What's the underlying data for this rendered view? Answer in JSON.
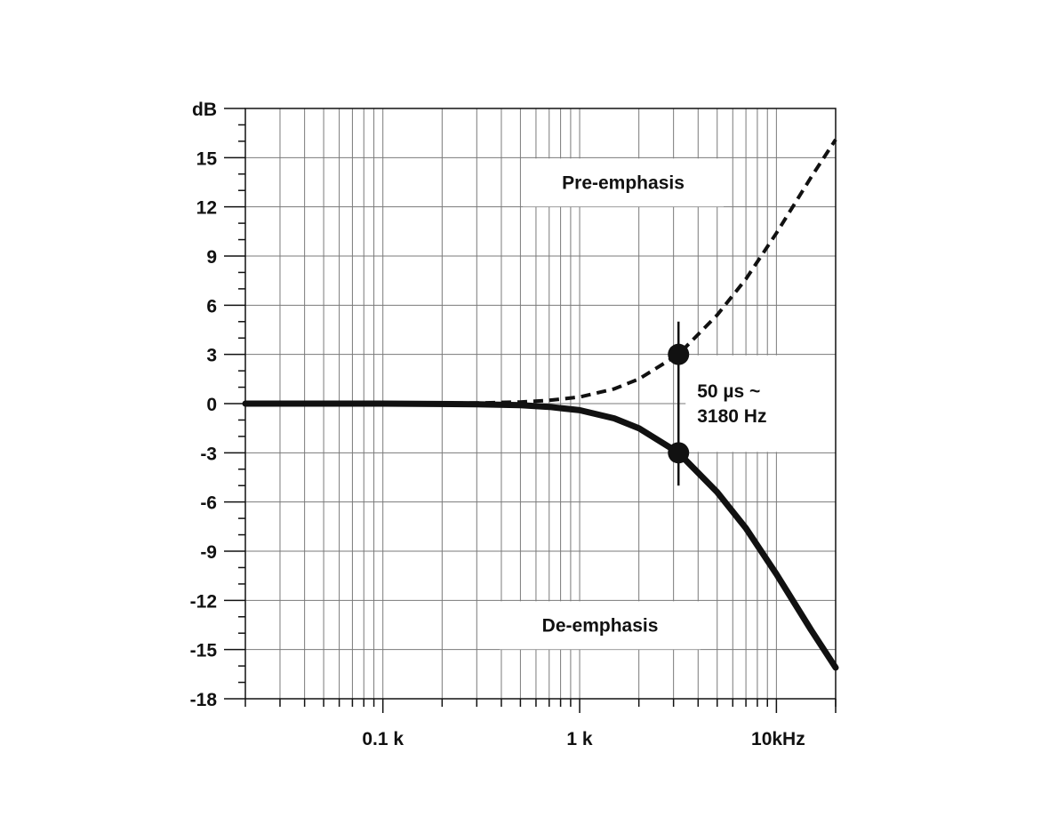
{
  "chart_data": {
    "type": "line",
    "title": "",
    "xlabel": "",
    "ylabel": "dB",
    "x_scale": "log",
    "xlim": [
      20,
      20000
    ],
    "ylim": [
      -18,
      18
    ],
    "grid": true,
    "y_ticks": [
      15,
      12,
      9,
      6,
      3,
      0,
      -3,
      -6,
      -9,
      -12,
      -15,
      -18
    ],
    "y_tick_labels": [
      "15",
      "12",
      "9",
      "6",
      "3",
      "0",
      "-3",
      "-6",
      "-9",
      "-12",
      "-15",
      "-18"
    ],
    "x_tick_labels": [
      {
        "value": 100,
        "label": "0.1 k"
      },
      {
        "value": 1000,
        "label": "1 k"
      },
      {
        "value": 10000,
        "label": "10kHz"
      }
    ],
    "time_constant_us": 50,
    "corner_frequency_hz": 3180,
    "series": [
      {
        "name": "Pre-emphasis",
        "style": "dashed",
        "x": [
          20,
          100,
          300,
          500,
          700,
          1000,
          1500,
          2000,
          3180,
          5000,
          7000,
          10000,
          15000,
          20000
        ],
        "y": [
          0.0,
          0.0,
          0.04,
          0.1,
          0.2,
          0.4,
          0.9,
          1.5,
          3.0,
          5.4,
          7.6,
          10.4,
          13.8,
          16.1
        ]
      },
      {
        "name": "De-emphasis",
        "style": "solid",
        "x": [
          20,
          100,
          300,
          500,
          700,
          1000,
          1500,
          2000,
          3180,
          5000,
          7000,
          10000,
          15000,
          20000
        ],
        "y": [
          0.0,
          0.0,
          -0.04,
          -0.1,
          -0.2,
          -0.4,
          -0.9,
          -1.5,
          -3.0,
          -5.4,
          -7.6,
          -10.4,
          -13.8,
          -16.1
        ]
      }
    ],
    "annotations": {
      "pre_label": "Pre-emphasis",
      "de_label": "De-emphasis",
      "corner_line1": "50 µs ~",
      "corner_line2": "3180 Hz"
    },
    "colors": {
      "curve": "#111111",
      "grid": "#7a7a7a",
      "label_bg": "#ffffff"
    }
  }
}
